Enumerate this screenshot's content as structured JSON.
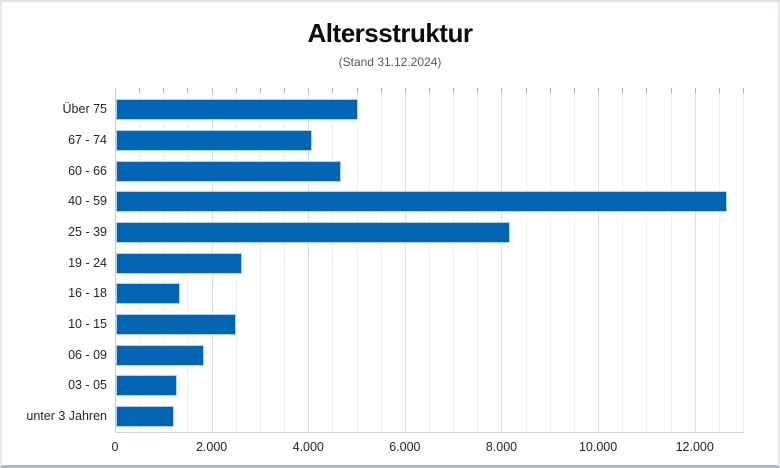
{
  "chart": {
    "title": "Altersstruktur",
    "subtitle": "(Stand 31.12.2024)"
  },
  "chart_data": {
    "type": "bar",
    "orientation": "horizontal",
    "title": "Altersstruktur",
    "subtitle": "(Stand 31.12.2024)",
    "categories": [
      "Über 75",
      "67 - 74",
      "60 - 66",
      "40 - 59",
      "25 - 39",
      "19 - 24",
      "16 - 18",
      "10 - 15",
      "06 - 09",
      "03 - 05",
      "unter 3 Jahren"
    ],
    "values": [
      5000,
      4050,
      4650,
      12650,
      8150,
      2600,
      1320,
      2480,
      1820,
      1270,
      1200
    ],
    "xlabel": "",
    "ylabel": "",
    "xlim": [
      0,
      13000
    ],
    "x_ticks": [
      0,
      2000,
      4000,
      6000,
      8000,
      10000,
      12000
    ],
    "x_tick_labels": [
      "0",
      "2.000",
      "4.000",
      "6.000",
      "8.000",
      "10.000",
      "12.000"
    ],
    "minor_grid_step": 500,
    "major_grid_step": 2000,
    "grid": "vertical gridlines: minor every 500 (light), major every 2000 (darker)",
    "legend": "none",
    "data_labels": false,
    "bar_color": "#0265b3",
    "background_color": "#ffffff"
  }
}
